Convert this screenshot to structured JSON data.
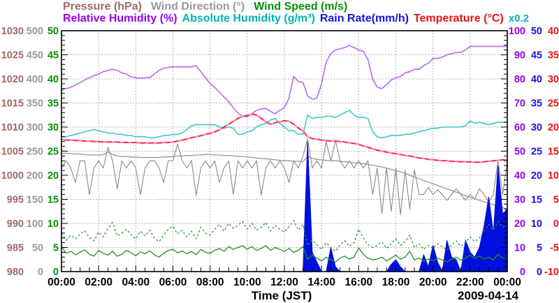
{
  "legend": {
    "line1": [
      {
        "label": "Pressure (hPa)",
        "color": "#a06868"
      },
      {
        "label": "Wind Direction (°)",
        "color": "#999999"
      },
      {
        "label": "Wind Speed (m/s)",
        "color": "#009000"
      }
    ],
    "line2": [
      {
        "label": "Relative Humidity (%)",
        "color": "#9900ee"
      },
      {
        "label": "Absolute Humidity (g/m³)",
        "color": "#00b2b2"
      },
      {
        "label": "Rain Rate(mm/h)",
        "color": "#1515dd"
      },
      {
        "label": "Temperature (°C)",
        "color": "#ee1111"
      }
    ],
    "scale_note": {
      "label": "x0.2",
      "color": "#00b2b2"
    }
  },
  "axes": {
    "left": [
      {
        "name": "pressure",
        "color": "#a06868",
        "ticks": [
          1030,
          1025,
          1020,
          1015,
          1010,
          1005,
          1000,
          995,
          990,
          985,
          980
        ]
      },
      {
        "name": "wind-direction",
        "color": "#999999",
        "ticks": [
          500,
          450,
          400,
          350,
          300,
          250,
          200,
          150,
          100,
          50,
          0
        ]
      },
      {
        "name": "wind-speed",
        "color": "#009000",
        "ticks": [
          50,
          45,
          40,
          35,
          30,
          25,
          20,
          15,
          10,
          5,
          0
        ]
      }
    ],
    "right": [
      {
        "name": "relative-humidity",
        "color": "#9900ee",
        "ticks": [
          100,
          90,
          80,
          70,
          60,
          50,
          40,
          30,
          20,
          10,
          0
        ]
      },
      {
        "name": "rain-rate",
        "color": "#1515dd",
        "ticks": [
          50,
          45,
          40,
          35,
          30,
          25,
          20,
          15,
          10,
          5,
          0
        ]
      },
      {
        "name": "temperature",
        "color": "#ee1111",
        "ticks": [
          40,
          35,
          30,
          25,
          20,
          15,
          10,
          5,
          0,
          -5,
          -10
        ]
      }
    ],
    "x": {
      "tick_labels": [
        "00:00",
        "02:00",
        "04:00",
        "06:00",
        "08:00",
        "10:00",
        "12:00",
        "14:00",
        "16:00",
        "18:00",
        "20:00",
        "22:00",
        "00:00"
      ],
      "title": "Time (JST)",
      "date": "2009-04-14"
    }
  },
  "plot_style": {
    "background": "#ffffff",
    "border_color": "#000000",
    "grid_color": "#999999"
  },
  "chart_data": {
    "type": "line",
    "x_axis": {
      "label": "Time (JST)",
      "date": "2009-04-14",
      "start_hours": 0,
      "end_hours": 24,
      "step_hours": 0.25
    },
    "axis_ranges": {
      "pressure_hPa": [
        980,
        1030
      ],
      "wind_direction_deg": [
        0,
        500
      ],
      "wind_speed_ms": [
        0,
        50
      ],
      "relative_humidity_pct": [
        0,
        100
      ],
      "absolute_humidity_gm3_x0.2": [
        0,
        20
      ],
      "rain_rate_mmh": [
        0,
        50
      ],
      "temperature_C": [
        -10,
        40
      ]
    },
    "grid": true,
    "series": [
      {
        "name": "Wind Direction",
        "unit": "°",
        "axis": "wind_direction",
        "color": "#8a8a8a",
        "style": "solid",
        "width": 1.1,
        "values": [
          215,
          230,
          215,
          185,
          230,
          230,
          160,
          215,
          230,
          215,
          258,
          230,
          172,
          230,
          215,
          230,
          215,
          160,
          215,
          230,
          230,
          215,
          185,
          230,
          230,
          265,
          230,
          215,
          230,
          158,
          215,
          230,
          215,
          230,
          185,
          215,
          230,
          160,
          230,
          215,
          230,
          215,
          230,
          158,
          215,
          230,
          215,
          230,
          215,
          185,
          230,
          215,
          240,
          275,
          215,
          230,
          215,
          270,
          230,
          272,
          230,
          215,
          230,
          215,
          230,
          215,
          230,
          160,
          215,
          120,
          215,
          125,
          215,
          118,
          210,
          130,
          212,
          160,
          160,
          175,
          160,
          170,
          160,
          148,
          160,
          172,
          160,
          148,
          160,
          150,
          172,
          160,
          145,
          160,
          230,
          160,
          230
        ]
      },
      {
        "name": "Pressure",
        "unit": "hPa",
        "axis": "pressure",
        "color": "#b08a8a",
        "style": "solid",
        "width": 1.3,
        "values": [
          1004.6,
          1004.6,
          1004.5,
          1004.4,
          1004.4,
          1004.3,
          1004.2,
          1004.2,
          1004.2,
          1004.3,
          1004.8,
          1004.3,
          1004.0,
          1003.9,
          1003.9,
          1003.8,
          1003.8,
          1003.7,
          1003.7,
          1003.7,
          1003.7,
          1003.7,
          1003.8,
          1003.8,
          1003.9,
          1004.0,
          1004.0,
          1004.1,
          1004.1,
          1004.2,
          1004.2,
          1004.3,
          1004.3,
          1004.2,
          1004.2,
          1004.1,
          1004.1,
          1004.0,
          1003.9,
          1003.9,
          1003.8,
          1003.7,
          1003.6,
          1003.5,
          1003.4,
          1003.3,
          1003.2,
          1003.1,
          1003.0,
          1003.0,
          1002.9,
          1002.9,
          1002.8,
          1003.9,
          1003.5,
          1003.3,
          1003.2,
          1003.1,
          1003.0,
          1003.0,
          1002.9,
          1002.8,
          1002.7,
          1002.6,
          1002.5,
          1002.4,
          1002.2,
          1002.1,
          1001.9,
          1001.7,
          1001.5,
          1001.2,
          1001.0,
          1000.7,
          1000.4,
          1000.0,
          999.6,
          999.3,
          998.9,
          998.6,
          998.2,
          997.9,
          997.5,
          997.2,
          996.8,
          996.5,
          996.1,
          995.8,
          995.4,
          995.1,
          994.8,
          994.5,
          994.2,
          993.9,
          993.6,
          993.3,
          993.0
        ]
      },
      {
        "name": "Rain Rate",
        "unit": "mm/h",
        "axis": "rain_rate",
        "color": "#0010dd",
        "style": "area",
        "width": 1,
        "values": [
          0,
          0,
          0,
          0,
          0,
          0,
          0,
          0,
          0,
          0,
          0,
          0,
          0,
          0,
          0,
          0,
          0,
          0,
          0,
          0,
          0,
          0,
          0,
          0,
          0,
          0,
          0,
          0,
          0,
          0,
          0,
          0,
          0,
          0,
          0,
          0,
          0,
          0,
          0,
          0,
          0,
          0,
          0,
          0,
          0,
          0,
          0,
          0,
          0,
          0,
          0,
          0,
          0,
          27,
          4,
          2,
          0,
          0,
          5,
          1,
          0,
          0,
          0,
          0,
          0,
          0,
          0,
          0,
          0,
          0,
          0,
          1.5,
          2.5,
          1,
          0,
          0,
          0,
          0,
          3.5,
          1,
          5.5,
          2,
          0,
          6.5,
          3,
          2.5,
          0,
          6.5,
          4,
          3,
          5,
          9.5,
          15.5,
          8,
          22,
          12,
          13
        ]
      },
      {
        "name": "Wind Speed (max)",
        "unit": "m/s",
        "axis": "wind_speed",
        "color": "#2a9a2a",
        "style": "dashed",
        "width": 1.3,
        "values": [
          8.0,
          6.5,
          7.5,
          6.8,
          7.8,
          8.5,
          7.0,
          6.4,
          8.2,
          7.2,
          9.0,
          10.2,
          7.4,
          8.0,
          8.8,
          7.6,
          6.8,
          8.4,
          7.4,
          8.6,
          7.0,
          6.2,
          7.6,
          8.8,
          9.4,
          7.8,
          8.6,
          7.2,
          8.4,
          6.8,
          9.2,
          8.0,
          7.6,
          8.8,
          9.8,
          8.4,
          10.0,
          9.0,
          9.6,
          10.4,
          8.8,
          10.0,
          8.6,
          9.2,
          10.2,
          8.4,
          9.6,
          8.8,
          8.2,
          9.4,
          10.6,
          8.6,
          9.8,
          5.4,
          6.6,
          5.6,
          4.6,
          6.0,
          5.0,
          4.2,
          5.6,
          6.4,
          5.2,
          6.0,
          8.8,
          7.0,
          5.6,
          5.0,
          5.4,
          6.2,
          4.8,
          5.8,
          6.8,
          5.4,
          6.2,
          7.6,
          5.0,
          5.8,
          4.6,
          5.4,
          4.8,
          5.8,
          5.2,
          4.4,
          5.6,
          6.4,
          5.2,
          6.0,
          7.2,
          6.2,
          7.0,
          8.4,
          9.8,
          8.6,
          10.4,
          9.2,
          9.6
        ]
      },
      {
        "name": "Wind Speed",
        "unit": "m/s",
        "axis": "wind_speed",
        "color": "#209020",
        "style": "solid",
        "width": 1.3,
        "values": [
          5.2,
          3.8,
          4.2,
          3.5,
          4.0,
          4.5,
          3.6,
          3.2,
          4.4,
          3.8,
          3.4,
          4.2,
          3.2,
          3.6,
          4.4,
          3.9,
          3.3,
          4.1,
          3.7,
          4.3,
          3.5,
          3.0,
          3.8,
          4.4,
          4.6,
          3.9,
          4.3,
          3.7,
          4.2,
          3.5,
          4.6,
          4.0,
          3.8,
          4.4,
          4.8,
          4.2,
          5.2,
          4.6,
          5.0,
          5.4,
          4.6,
          5.2,
          4.4,
          4.8,
          5.4,
          4.4,
          5.0,
          4.6,
          4.2,
          4.8,
          4.0,
          4.4,
          5.2,
          2.6,
          3.4,
          2.8,
          2.2,
          3.0,
          2.4,
          2.0,
          2.8,
          3.2,
          2.6,
          3.0,
          4.9,
          3.6,
          2.8,
          2.4,
          2.6,
          3.0,
          2.2,
          2.8,
          3.4,
          2.6,
          3.0,
          4.2,
          2.4,
          2.8,
          2.2,
          2.6,
          2.2,
          2.8,
          2.4,
          2.0,
          2.6,
          3.0,
          2.4,
          2.8,
          3.4,
          2.8,
          3.2,
          2.6,
          3.0,
          2.4,
          3.6,
          2.8,
          3.0
        ]
      },
      {
        "name": "Absolute Humidity",
        "unit": "g/m³",
        "axis": "absolute_humidity",
        "scale_note": "x0.2",
        "color": "#3cc8c8",
        "style": "solid",
        "width": 1.6,
        "values": [
          11.2,
          11.2,
          11.3,
          11.4,
          11.5,
          11.6,
          11.7,
          11.8,
          11.7,
          11.6,
          11.5,
          11.5,
          11.4,
          11.4,
          11.3,
          11.3,
          11.2,
          11.2,
          11.2,
          11.1,
          11.1,
          11.2,
          11.3,
          11.3,
          11.4,
          11.4,
          11.5,
          11.8,
          12.1,
          12.2,
          12.2,
          12.2,
          12.2,
          12.2,
          12.0,
          11.9,
          12.0,
          11.9,
          11.4,
          11.4,
          11.6,
          11.7,
          12.0,
          12.2,
          12.3,
          12.6,
          12.7,
          12.3,
          12.0,
          11.7,
          11.7,
          11.4,
          11.4,
          13.0,
          12.7,
          12.8,
          12.8,
          12.9,
          12.9,
          12.8,
          13.0,
          13.2,
          13.4,
          13.0,
          12.8,
          12.8,
          12.7,
          11.6,
          11.2,
          11.1,
          11.2,
          11.3,
          11.3,
          11.3,
          11.4,
          11.4,
          11.5,
          11.6,
          11.7,
          11.8,
          11.9,
          11.9,
          12.0,
          12.0,
          12.0,
          12.0,
          12.0,
          12.1,
          12.5,
          12.3,
          12.4,
          12.3,
          12.2,
          12.3,
          12.4,
          12.4,
          12.4
        ]
      },
      {
        "name": "Relative Humidity",
        "unit": "%",
        "axis": "relative_humidity",
        "color": "#b768f2",
        "style": "solid",
        "width": 1.6,
        "values": [
          75.5,
          76,
          76.5,
          77.5,
          78.5,
          79.5,
          80.5,
          81.3,
          82,
          83,
          83.5,
          84,
          83.5,
          82.5,
          82,
          80.8,
          80.5,
          80.3,
          80.5,
          80.5,
          82,
          83.5,
          84.5,
          84.8,
          85,
          85,
          85,
          85,
          85,
          85.5,
          83,
          80.5,
          78,
          76.5,
          74.5,
          72.5,
          70.5,
          68,
          65.8,
          64.5,
          64.3,
          65.5,
          67,
          67.5,
          67.8,
          66.5,
          65.5,
          67,
          68,
          72,
          81,
          79,
          78.5,
          73,
          71.6,
          72,
          78,
          87,
          90.5,
          92,
          92.5,
          93,
          93.9,
          93,
          92,
          91.5,
          88,
          80,
          76.5,
          76,
          77.5,
          79.5,
          80.5,
          81,
          82.5,
          83,
          84,
          84,
          85.5,
          86.5,
          88.5,
          88.5,
          89,
          90,
          90.5,
          91,
          91,
          92,
          93.5,
          93.5,
          93.5,
          93.5,
          93.5,
          93.5,
          93.5,
          93.5,
          93.5
        ]
      },
      {
        "name": "Temperature",
        "unit": "°C",
        "axis": "temperature",
        "color": "#ff2244",
        "overlay_color": "#ff85c2",
        "style": "solid",
        "width": 2,
        "values": [
          17.4,
          17.3,
          17.3,
          17.2,
          17.2,
          17.1,
          17.1,
          17.0,
          17.0,
          16.9,
          16.9,
          16.9,
          16.9,
          16.8,
          16.8,
          16.8,
          16.8,
          16.7,
          16.7,
          16.7,
          16.7,
          16.7,
          16.8,
          16.8,
          16.9,
          17.1,
          17.3,
          17.5,
          17.8,
          18.0,
          18.2,
          18.5,
          18.7,
          19.0,
          19.4,
          20.0,
          20.6,
          21.2,
          21.8,
          22.2,
          22.4,
          22.7,
          22.5,
          21.8,
          21.1,
          20.6,
          20.9,
          21.1,
          21.3,
          21.2,
          20.6,
          19.8,
          19.2,
          18.0,
          17.6,
          17.5,
          17.3,
          17.2,
          17.1,
          17.1,
          17.0,
          16.9,
          16.7,
          16.6,
          16.4,
          16.1,
          15.8,
          15.5,
          15.2,
          15.0,
          14.8,
          14.6,
          14.5,
          14.3,
          14.1,
          14.0,
          13.8,
          13.6,
          13.5,
          13.3,
          13.2,
          13.1,
          13.0,
          13.0,
          12.9,
          12.9,
          12.8,
          12.8,
          12.8,
          12.7,
          12.7,
          12.8,
          12.9,
          13.0,
          13.1,
          13.2,
          13.2
        ]
      }
    ]
  }
}
